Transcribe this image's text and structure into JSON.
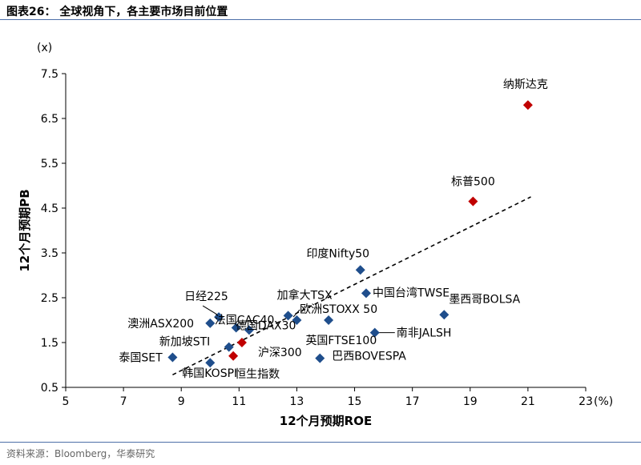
{
  "figure": {
    "title": "图表26：  全球视角下，各主要市场目前位置",
    "source": "资料来源：Bloomberg，华泰研究"
  },
  "colors": {
    "point_default": "#1f4e8c",
    "point_highlight": "#c00000",
    "rule": "#4d6fa8",
    "axis": "#000000"
  },
  "chart_data": {
    "type": "scatter",
    "title": "全球视角下，各主要市场目前位置",
    "xlabel": "12个月预期ROE",
    "ylabel": "12个月预期PB",
    "x_unit": "(%)",
    "y_unit": "(x)",
    "xlim": [
      5,
      23
    ],
    "ylim": [
      0.5,
      7.5
    ],
    "xticks": [
      5,
      7,
      9,
      11,
      13,
      15,
      17,
      19,
      21,
      23
    ],
    "yticks": [
      0.5,
      1.5,
      2.5,
      3.5,
      4.5,
      5.5,
      6.5,
      7.5
    ],
    "grid": false,
    "trendline": {
      "style": "dashed",
      "x": [
        8.7,
        21.1
      ],
      "y": [
        0.78,
        4.75
      ]
    },
    "points": [
      {
        "label": "纳斯达克",
        "x": 21.0,
        "y": 6.8,
        "highlight": true
      },
      {
        "label": "标普500",
        "x": 19.1,
        "y": 4.65,
        "highlight": true
      },
      {
        "label": "印度Nifty50",
        "x": 15.2,
        "y": 3.12,
        "highlight": false
      },
      {
        "label": "中国台湾TWSE",
        "x": 15.4,
        "y": 2.6,
        "highlight": false
      },
      {
        "label": "墨西哥BOLSA",
        "x": 18.1,
        "y": 2.12,
        "highlight": false
      },
      {
        "label": "加拿大TSX",
        "x": 12.7,
        "y": 2.1,
        "highlight": false
      },
      {
        "label": "欧洲STOXX 50",
        "x": 14.1,
        "y": 2.0,
        "highlight": false
      },
      {
        "label": "日经225",
        "x": 10.3,
        "y": 2.07,
        "highlight": false
      },
      {
        "label": "法国CAC40",
        "x": 10.9,
        "y": 1.83,
        "highlight": false
      },
      {
        "label": "德国DAX30",
        "x": 11.35,
        "y": 1.78,
        "highlight": false
      },
      {
        "label": "澳洲ASX200",
        "x": 10.0,
        "y": 1.93,
        "highlight": false
      },
      {
        "label": "英国FTSE100",
        "x": 13.0,
        "y": 2.0,
        "highlight": false
      },
      {
        "label": "南非JALSH",
        "x": 15.7,
        "y": 1.72,
        "highlight": false
      },
      {
        "label": "新加坡STI",
        "x": 10.65,
        "y": 1.4,
        "highlight": false
      },
      {
        "label": "沪深300",
        "x": 11.1,
        "y": 1.5,
        "highlight": true
      },
      {
        "label": "泰国SET",
        "x": 8.7,
        "y": 1.17,
        "highlight": false
      },
      {
        "label": "恒生指数",
        "x": 10.8,
        "y": 1.2,
        "highlight": true
      },
      {
        "label": "巴西BOVESPA",
        "x": 13.8,
        "y": 1.15,
        "highlight": false
      },
      {
        "label": "韩国KOSPI",
        "x": 10.0,
        "y": 1.05,
        "highlight": false
      }
    ]
  }
}
